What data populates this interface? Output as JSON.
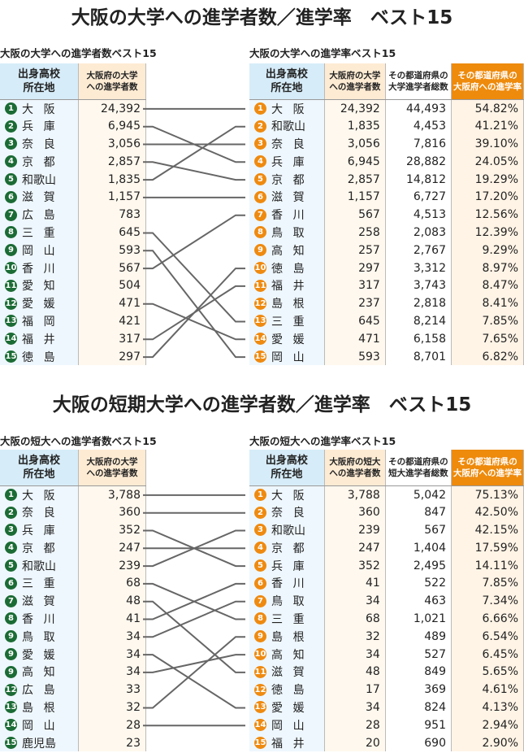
{
  "sections": [
    {
      "title": "大阪の大学への進学者数／進学率　ベスト15",
      "left": {
        "subtitle": "大阪の大学への進学者数ベスト15",
        "headers": [
          "出身高校\n所在地",
          "大阪府の大学\nへの進学者数"
        ],
        "rows": [
          [
            "1",
            "大阪",
            "24,392"
          ],
          [
            "2",
            "兵庫",
            "6,945"
          ],
          [
            "3",
            "奈良",
            "3,056"
          ],
          [
            "4",
            "京都",
            "2,857"
          ],
          [
            "5",
            "和歌山",
            "1,835"
          ],
          [
            "6",
            "滋賀",
            "1,157"
          ],
          [
            "7",
            "広島",
            "783"
          ],
          [
            "8",
            "三重",
            "645"
          ],
          [
            "9",
            "岡山",
            "593"
          ],
          [
            "10",
            "香川",
            "567"
          ],
          [
            "11",
            "愛知",
            "504"
          ],
          [
            "12",
            "愛媛",
            "471"
          ],
          [
            "13",
            "福岡",
            "421"
          ],
          [
            "14",
            "福井",
            "317"
          ],
          [
            "15",
            "徳島",
            "297"
          ]
        ]
      },
      "right": {
        "subtitle": "大阪の大学への進学率ベスト15",
        "headers": [
          "出身高校\n所在地",
          "大阪府の大学\nへの進学者数",
          "その都道府県の\n大学進学者総数",
          "その都道府県の\n大阪府への進学率"
        ],
        "rows": [
          [
            "1",
            "大阪",
            "24,392",
            "44,493",
            "54.82%"
          ],
          [
            "2",
            "和歌山",
            "1,835",
            "4,453",
            "41.21%"
          ],
          [
            "3",
            "奈良",
            "3,056",
            "7,816",
            "39.10%"
          ],
          [
            "4",
            "兵庫",
            "6,945",
            "28,882",
            "24.05%"
          ],
          [
            "5",
            "京都",
            "2,857",
            "14,812",
            "19.29%"
          ],
          [
            "6",
            "滋賀",
            "1,157",
            "6,727",
            "17.20%"
          ],
          [
            "7",
            "香川",
            "567",
            "4,513",
            "12.56%"
          ],
          [
            "8",
            "鳥取",
            "258",
            "2,083",
            "12.39%"
          ],
          [
            "9",
            "高知",
            "257",
            "2,767",
            "9.29%"
          ],
          [
            "10",
            "徳島",
            "297",
            "3,312",
            "8.97%"
          ],
          [
            "11",
            "福井",
            "317",
            "3,743",
            "8.47%"
          ],
          [
            "12",
            "島根",
            "237",
            "2,818",
            "8.41%"
          ],
          [
            "13",
            "三重",
            "645",
            "8,214",
            "7.85%"
          ],
          [
            "14",
            "愛媛",
            "471",
            "6,158",
            "7.65%"
          ],
          [
            "15",
            "岡山",
            "593",
            "8,701",
            "6.82%"
          ]
        ]
      }
    },
    {
      "title": "大阪の短期大学への進学者数／進学率　ベスト15",
      "left": {
        "subtitle": "大阪の短大への進学者数ベスト15",
        "headers": [
          "出身高校\n所在地",
          "大阪府の大学\nへの進学者数"
        ],
        "rows": [
          [
            "1",
            "大阪",
            "3,788"
          ],
          [
            "2",
            "奈良",
            "360"
          ],
          [
            "3",
            "兵庫",
            "352"
          ],
          [
            "4",
            "京都",
            "247"
          ],
          [
            "5",
            "和歌山",
            "239"
          ],
          [
            "6",
            "三重",
            "68"
          ],
          [
            "7",
            "滋賀",
            "48"
          ],
          [
            "8",
            "香川",
            "41"
          ],
          [
            "9",
            "鳥取",
            "34"
          ],
          [
            "9",
            "愛媛",
            "34"
          ],
          [
            "9",
            "高知",
            "34"
          ],
          [
            "12",
            "広島",
            "33"
          ],
          [
            "13",
            "島根",
            "32"
          ],
          [
            "14",
            "岡山",
            "28"
          ],
          [
            "15",
            "鹿児島",
            "23"
          ]
        ]
      },
      "right": {
        "subtitle": "大阪の短大への進学率ベスト15",
        "headers": [
          "出身高校\n所在地",
          "大阪府の短大\nへの進学者数",
          "その都道府県の\n短大進学者総数",
          "その都道府県の\n大阪府への進学率"
        ],
        "rows": [
          [
            "1",
            "大阪",
            "3,788",
            "5,042",
            "75.13%"
          ],
          [
            "2",
            "奈良",
            "360",
            "847",
            "42.50%"
          ],
          [
            "3",
            "和歌山",
            "239",
            "567",
            "42.15%"
          ],
          [
            "4",
            "京都",
            "247",
            "1,404",
            "17.59%"
          ],
          [
            "5",
            "兵庫",
            "352",
            "2,495",
            "14.11%"
          ],
          [
            "6",
            "香川",
            "41",
            "522",
            "7.85%"
          ],
          [
            "7",
            "鳥取",
            "34",
            "463",
            "7.34%"
          ],
          [
            "8",
            "三重",
            "68",
            "1,021",
            "6.66%"
          ],
          [
            "9",
            "島根",
            "32",
            "489",
            "6.54%"
          ],
          [
            "10",
            "高知",
            "34",
            "527",
            "6.45%"
          ],
          [
            "11",
            "滋賀",
            "48",
            "849",
            "5.65%"
          ],
          [
            "12",
            "徳島",
            "17",
            "369",
            "4.61%"
          ],
          [
            "13",
            "愛媛",
            "34",
            "824",
            "4.13%"
          ],
          [
            "14",
            "岡山",
            "28",
            "951",
            "2.94%"
          ],
          [
            "15",
            "福井",
            "20",
            "690",
            "2.90%"
          ]
        ]
      }
    }
  ],
  "colors": {
    "left_badge": "#1b6b35",
    "right_badge": "#ef8a10",
    "rate_header": "#ee8a0c",
    "connector": "#666666"
  }
}
